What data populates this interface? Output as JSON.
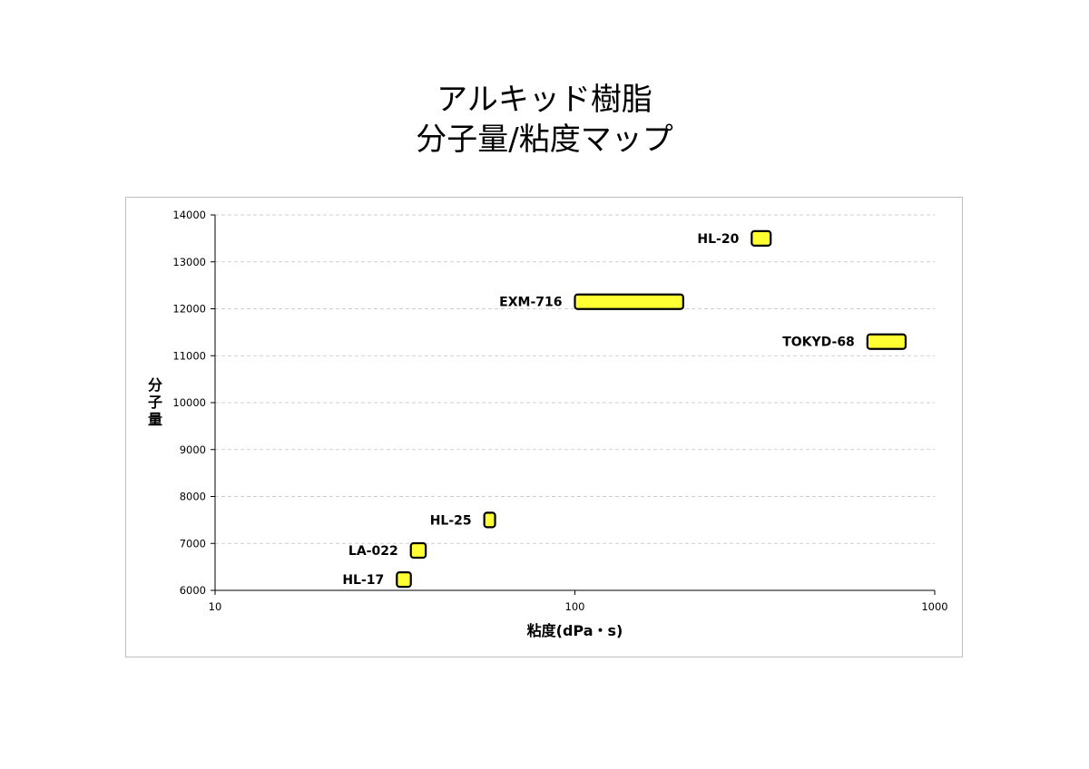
{
  "chart_data": {
    "type": "bar",
    "title_lines": [
      "アルキッド樹脂",
      "分子量/粘度マップ"
    ],
    "xlabel": "粘度(dPa・s)",
    "ylabel": "分子量",
    "x_scale": "log",
    "xlim": [
      10,
      1000
    ],
    "ylim": [
      6000,
      14000
    ],
    "x_ticks": [
      "10",
      "100",
      "1000"
    ],
    "y_ticks": [
      "14000",
      "13000",
      "12000",
      "11000",
      "10000",
      "9000",
      "8000",
      "7000",
      "6000"
    ],
    "grid": true,
    "colors": {
      "bar_fill": "#ffff33",
      "bar_stroke": "#000000",
      "grid": "#c0c0c0"
    },
    "items": [
      {
        "name": "HL-20",
        "x_min": 310,
        "x_max": 350,
        "y": 13500
      },
      {
        "name": "EXM-716",
        "x_min": 100,
        "x_max": 200,
        "y": 12150
      },
      {
        "name": "TOKYD-68",
        "x_min": 650,
        "x_max": 830,
        "y": 11300
      },
      {
        "name": "HL-25",
        "x_min": 56,
        "x_max": 60,
        "y": 7500
      },
      {
        "name": "LA-022",
        "x_min": 35,
        "x_max": 38.5,
        "y": 6850
      },
      {
        "name": "HL-17",
        "x_min": 32,
        "x_max": 35,
        "y": 6230
      }
    ]
  }
}
